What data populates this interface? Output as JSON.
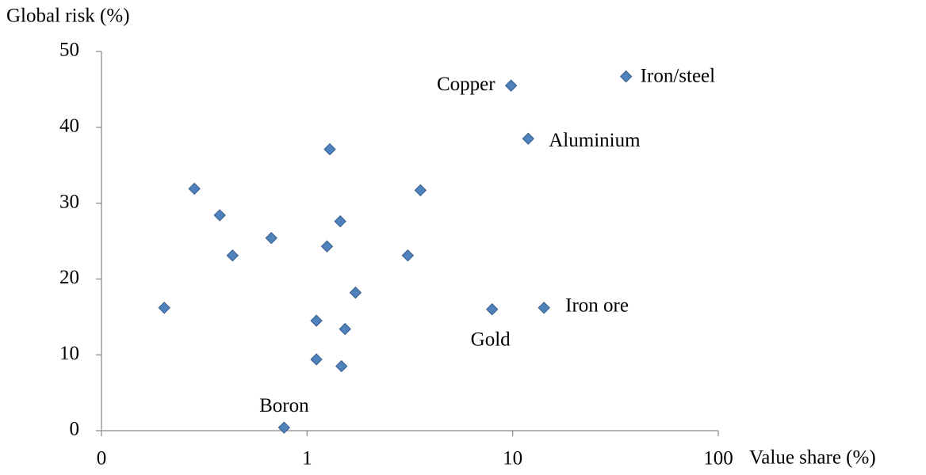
{
  "chart_data": {
    "type": "scatter",
    "y_label": "Global risk (%)",
    "x_label": "Value share (%)",
    "x": [
      0.202,
      0.283,
      0.376,
      0.434,
      0.67,
      0.773,
      1.11,
      1.11,
      1.25,
      1.29,
      1.45,
      1.47,
      1.53,
      1.72,
      3.09,
      3.56,
      7.94,
      9.82,
      11.9,
      14.2,
      35.6
    ],
    "values": [
      16.2,
      31.9,
      28.4,
      23.1,
      25.4,
      0.4,
      14.5,
      9.4,
      24.3,
      37.1,
      27.6,
      8.5,
      13.4,
      18.2,
      23.1,
      31.7,
      16.0,
      45.5,
      38.5,
      16.2,
      46.7
    ],
    "labels": [
      null,
      null,
      null,
      null,
      null,
      "Boron",
      null,
      null,
      null,
      null,
      null,
      null,
      null,
      null,
      null,
      null,
      "Gold",
      "Copper",
      "Aluminium",
      "Iron ore",
      "Iron/steel"
    ],
    "color": "#4f81bd",
    "x_log": true,
    "xlim": [
      0.1,
      100
    ],
    "xticks": [
      {
        "value": 0.1,
        "label": "0"
      },
      1,
      10,
      100
    ],
    "ylim": [
      0,
      50
    ],
    "yticks": [
      0,
      10,
      20,
      30,
      40,
      50
    ],
    "grid": false
  }
}
